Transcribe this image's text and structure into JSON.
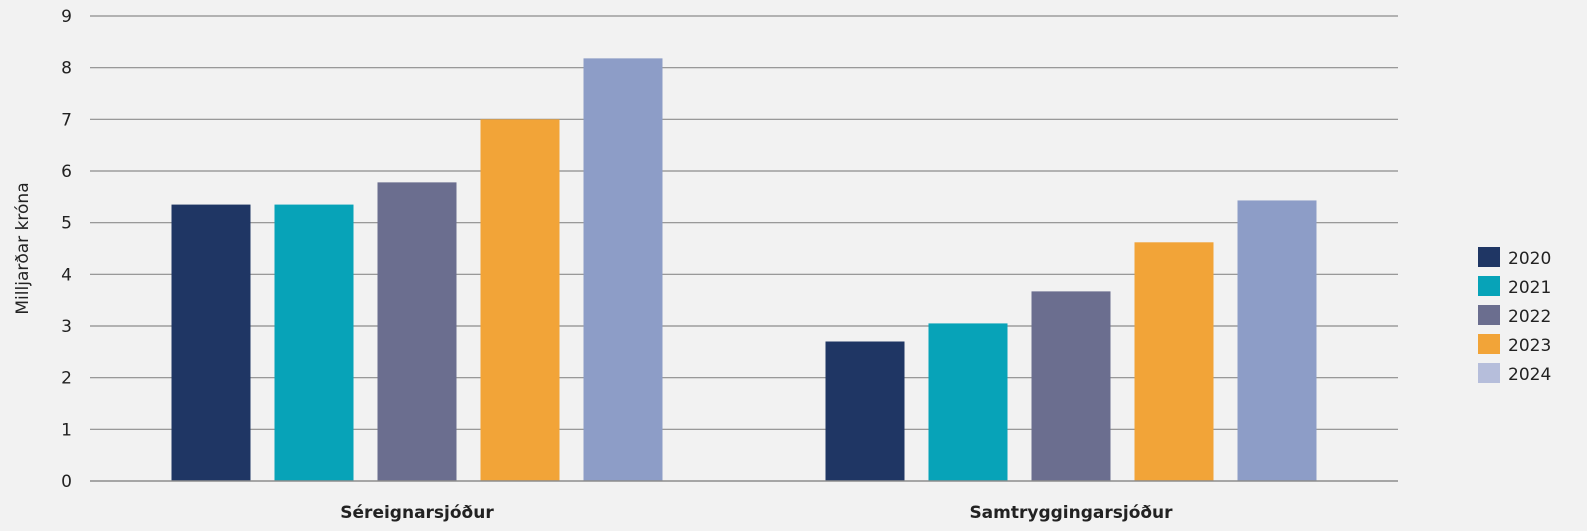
{
  "chart_data": {
    "type": "bar",
    "ylabel": "Milljarðar króna",
    "ylim": [
      0,
      9
    ],
    "yticks": [
      0,
      1,
      2,
      3,
      4,
      5,
      6,
      7,
      8,
      9
    ],
    "grid": true,
    "legend_position": "right",
    "categories": [
      "Séreignarsjóður",
      "Samtryggingarsjóður"
    ],
    "series": [
      {
        "name": "2020",
        "color": "#1f3664",
        "values": [
          5.35,
          2.7
        ]
      },
      {
        "name": "2021",
        "color": "#07a3b8",
        "values": [
          5.35,
          3.05
        ]
      },
      {
        "name": "2022",
        "color": "#6b6e8f",
        "values": [
          5.78,
          3.67
        ]
      },
      {
        "name": "2023",
        "color": "#f2a438",
        "values": [
          7.0,
          4.62
        ]
      },
      {
        "name": "2024",
        "color": "#8d9dc7",
        "values": [
          8.18,
          5.43
        ]
      }
    ],
    "legend_swatch_colors": [
      "#1f3664",
      "#07a3b8",
      "#6b6e8f",
      "#f2a438",
      "#b6bedb"
    ]
  }
}
